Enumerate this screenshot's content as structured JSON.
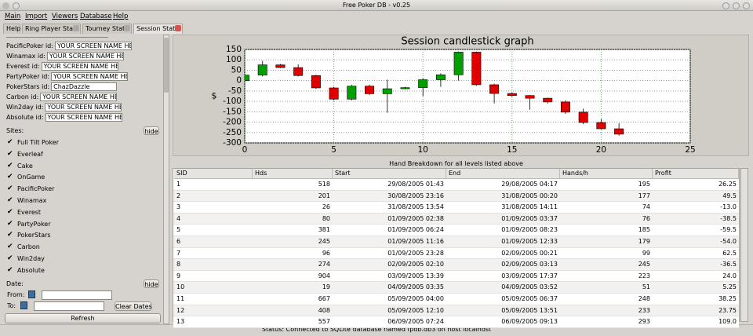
{
  "window": {
    "title": "Free Poker DB - v0.25"
  },
  "menu": [
    "Main",
    "Import",
    "Viewers",
    "Database",
    "Help"
  ],
  "tabs": [
    "Help",
    "Ring Player Stats",
    "Tourney Stats",
    "Session Stats"
  ],
  "filters": {
    "site_ids": [
      {
        "label": "PacificPoker id:",
        "value": "YOUR SCREEN NAME HE"
      },
      {
        "label": "Winamax id:",
        "value": "YOUR SCREEN NAME HE"
      },
      {
        "label": "Everest id:",
        "value": "YOUR SCREEN NAME HE"
      },
      {
        "label": "PartyPoker id:",
        "value": "YOUR SCREEN NAME HE"
      },
      {
        "label": "PokerStars id:",
        "value": "ChazDazzle"
      },
      {
        "label": "Carbon id:",
        "value": "YOUR SCREEN NAME HE"
      },
      {
        "label": "Win2day id:",
        "value": "YOUR SCREEN NAME HE"
      },
      {
        "label": "Absolute id:",
        "value": "YOUR SCREEN NAME HE"
      }
    ],
    "sites_label": "Sites:",
    "hide_sites": "hide",
    "sites": [
      "Full Tilt Poker",
      "Everleaf",
      "Cake",
      "OnGame",
      "PacificPoker",
      "Winamax",
      "Everest",
      "PartyPoker",
      "PokerStars",
      "Carbon",
      "Win2day",
      "Absolute"
    ],
    "date_label": "Date:",
    "hide_date": "hide",
    "from": "From:",
    "to": "To:",
    "clear_dates": "Clear Dates",
    "refresh": "Refresh"
  },
  "chart_data": {
    "type": "candlestick",
    "title": "Session candlestick graph",
    "y_label": "$",
    "xlim": [
      0,
      25
    ],
    "xticks": [
      0,
      5,
      10,
      15,
      20,
      25
    ],
    "ylim": [
      -300,
      150
    ],
    "yticks": [
      -300,
      -250,
      -200,
      -150,
      -100,
      -50,
      0,
      50,
      100,
      150
    ],
    "grid": true,
    "up_color": "#00a000",
    "down_color": "#e00000",
    "x": [
      0,
      1,
      2,
      3,
      4,
      5,
      6,
      7,
      8,
      9,
      10,
      11,
      12,
      13,
      14,
      15,
      16,
      17,
      18,
      19,
      20,
      21
    ],
    "open": [
      0,
      26.25,
      75.75,
      62.75,
      24.25,
      -35.25,
      -89.25,
      -26.75,
      -63.25,
      -39.25,
      -34,
      4.25,
      28,
      137,
      -20,
      -62,
      -72,
      -85,
      -103,
      -152,
      -202,
      -232
    ],
    "close": [
      26.25,
      75.75,
      62.75,
      24.25,
      -35.25,
      -89.25,
      -26.75,
      -63.25,
      -39.25,
      -34,
      4.25,
      28,
      137,
      -20,
      -62,
      -72,
      -85,
      -103,
      -152,
      -202,
      -232,
      -258
    ],
    "high": [
      30,
      95,
      80,
      78,
      28,
      -30,
      -20,
      -20,
      5,
      -30,
      10,
      35,
      140,
      140,
      -15,
      -58,
      -70,
      -82,
      -95,
      -135,
      -185,
      -205
    ],
    "low": [
      -5,
      20,
      60,
      20,
      -40,
      -95,
      -95,
      -70,
      -155,
      -42,
      -75,
      -30,
      0,
      -25,
      -110,
      -78,
      -140,
      -110,
      -160,
      -210,
      -235,
      -265
    ]
  },
  "table": {
    "caption": "Hand Breakdown for all levels listed above",
    "columns": [
      "SID",
      "Hds",
      "Start",
      "End",
      "Hands/h",
      "Profit"
    ],
    "rows": [
      [
        "1",
        "518",
        "29/08/2005 01:43",
        "29/08/2005 04:17",
        "195",
        "26.25"
      ],
      [
        "2",
        "201",
        "30/08/2005 23:16",
        "31/08/2005 00:20",
        "177",
        "49.5"
      ],
      [
        "3",
        "26",
        "31/08/2005 13:54",
        "31/08/2005 14:11",
        "74",
        "-13.0"
      ],
      [
        "4",
        "80",
        "01/09/2005 02:38",
        "01/09/2005 03:37",
        "76",
        "-38.5"
      ],
      [
        "5",
        "381",
        "01/09/2005 06:24",
        "01/09/2005 08:23",
        "185",
        "-59.5"
      ],
      [
        "6",
        "245",
        "01/09/2005 11:16",
        "01/09/2005 12:33",
        "179",
        "-54.0"
      ],
      [
        "7",
        "96",
        "01/09/2005 23:28",
        "02/09/2005 00:21",
        "99",
        "62.5"
      ],
      [
        "8",
        "274",
        "02/09/2005 02:10",
        "02/09/2005 03:13",
        "245",
        "-36.5"
      ],
      [
        "9",
        "904",
        "03/09/2005 13:39",
        "03/09/2005 17:37",
        "223",
        "24.0"
      ],
      [
        "10",
        "19",
        "04/09/2005 03:35",
        "04/09/2005 03:52",
        "51",
        "5.25"
      ],
      [
        "11",
        "667",
        "05/09/2005 04:00",
        "05/09/2005 06:37",
        "248",
        "38.25"
      ],
      [
        "12",
        "408",
        "05/09/2005 12:10",
        "05/09/2005 13:51",
        "233",
        "23.75"
      ],
      [
        "13",
        "557",
        "06/09/2005 07:24",
        "06/09/2005 09:13",
        "293",
        "109.0"
      ]
    ]
  },
  "status": "Status: Connected to SQLite database named fpdb.db3 on host localhost"
}
